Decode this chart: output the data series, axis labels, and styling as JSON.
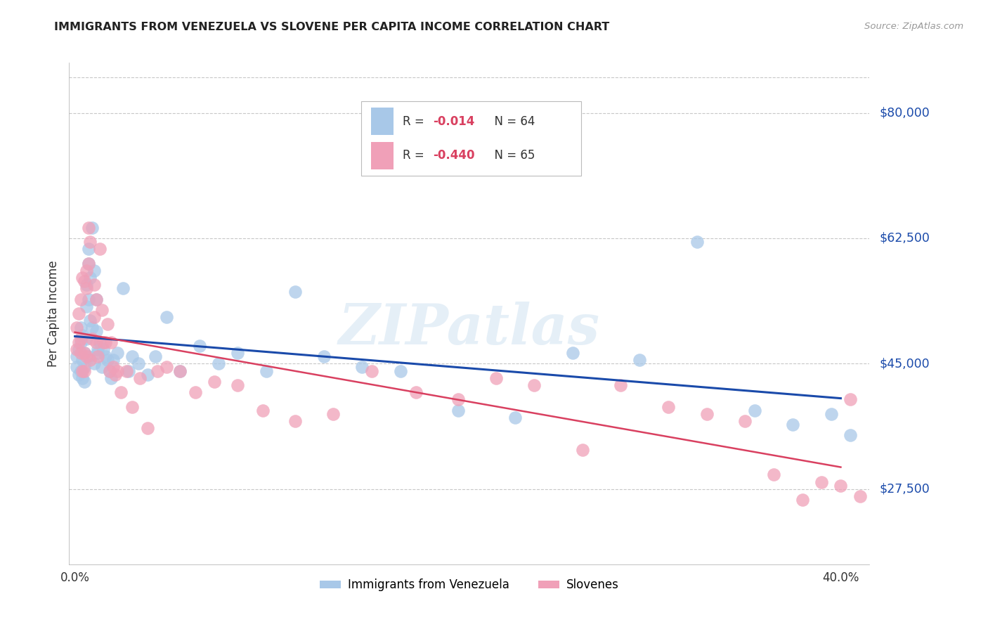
{
  "title": "IMMIGRANTS FROM VENEZUELA VS SLOVENE PER CAPITA INCOME CORRELATION CHART",
  "source": "Source: ZipAtlas.com",
  "ylabel": "Per Capita Income",
  "ytick_labels": [
    "$27,500",
    "$45,000",
    "$62,500",
    "$80,000"
  ],
  "ytick_values": [
    27500,
    45000,
    62500,
    80000
  ],
  "ymin": 17000,
  "ymax": 87000,
  "xmin": -0.003,
  "xmax": 0.415,
  "watermark": "ZIPatlas",
  "blue_color": "#a8c8e8",
  "pink_color": "#f0a0b8",
  "line_blue": "#1a4aaa",
  "line_pink": "#d94060",
  "blue_r": "-0.014",
  "blue_n": "64",
  "pink_r": "-0.440",
  "pink_n": "65",
  "blue_scatter_x": [
    0.001,
    0.001,
    0.002,
    0.002,
    0.003,
    0.003,
    0.003,
    0.004,
    0.004,
    0.004,
    0.005,
    0.005,
    0.005,
    0.006,
    0.006,
    0.006,
    0.007,
    0.007,
    0.007,
    0.007,
    0.008,
    0.008,
    0.009,
    0.009,
    0.01,
    0.01,
    0.011,
    0.011,
    0.012,
    0.012,
    0.013,
    0.014,
    0.015,
    0.016,
    0.017,
    0.018,
    0.019,
    0.02,
    0.022,
    0.025,
    0.028,
    0.03,
    0.033,
    0.038,
    0.042,
    0.048,
    0.055,
    0.065,
    0.075,
    0.085,
    0.1,
    0.115,
    0.13,
    0.15,
    0.17,
    0.2,
    0.23,
    0.26,
    0.295,
    0.325,
    0.355,
    0.375,
    0.395,
    0.405
  ],
  "blue_scatter_y": [
    44500,
    46000,
    43500,
    47000,
    44000,
    48000,
    50000,
    45500,
    43000,
    49000,
    44500,
    46500,
    42500,
    53000,
    56000,
    48500,
    59000,
    61000,
    54000,
    46000,
    57000,
    51000,
    64000,
    50000,
    58000,
    45000,
    54000,
    49500,
    47000,
    46500,
    48000,
    44500,
    47000,
    46000,
    45500,
    44000,
    43000,
    45500,
    46500,
    55500,
    44000,
    46000,
    45000,
    43500,
    46000,
    51500,
    44000,
    47500,
    45000,
    46500,
    44000,
    55000,
    46000,
    44500,
    44000,
    38500,
    37500,
    46500,
    45500,
    62000,
    38500,
    36500,
    38000,
    35000
  ],
  "pink_scatter_x": [
    0.001,
    0.001,
    0.002,
    0.002,
    0.003,
    0.003,
    0.003,
    0.004,
    0.004,
    0.005,
    0.005,
    0.005,
    0.006,
    0.006,
    0.006,
    0.007,
    0.007,
    0.008,
    0.008,
    0.009,
    0.01,
    0.01,
    0.011,
    0.011,
    0.012,
    0.013,
    0.014,
    0.015,
    0.016,
    0.017,
    0.018,
    0.019,
    0.02,
    0.021,
    0.022,
    0.024,
    0.027,
    0.03,
    0.034,
    0.038,
    0.043,
    0.048,
    0.055,
    0.063,
    0.073,
    0.085,
    0.098,
    0.115,
    0.135,
    0.155,
    0.178,
    0.2,
    0.22,
    0.24,
    0.265,
    0.285,
    0.31,
    0.33,
    0.35,
    0.365,
    0.38,
    0.39,
    0.4,
    0.405,
    0.41
  ],
  "pink_scatter_y": [
    47000,
    50000,
    48000,
    52000,
    46500,
    48500,
    54000,
    44000,
    57000,
    46500,
    56500,
    44000,
    55500,
    58000,
    46000,
    59000,
    64000,
    45500,
    62000,
    48500,
    56000,
    51500,
    54000,
    48000,
    46000,
    61000,
    52500,
    48000,
    48000,
    50500,
    44000,
    48000,
    44500,
    43500,
    44000,
    41000,
    44000,
    39000,
    43000,
    36000,
    44000,
    44500,
    44000,
    41000,
    42500,
    42000,
    38500,
    37000,
    38000,
    44000,
    41000,
    40000,
    43000,
    42000,
    33000,
    42000,
    39000,
    38000,
    37000,
    29500,
    26000,
    28500,
    28000,
    40000,
    26500
  ]
}
